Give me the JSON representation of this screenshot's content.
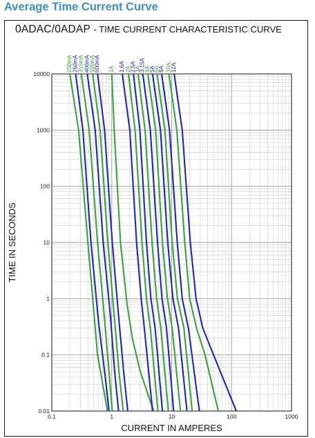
{
  "page": {
    "heading": "Average Time Current Curve"
  },
  "chart_data": {
    "type": "line",
    "title_prefix": "0ADAC/0ADAP",
    "title_suffix": "- TIME CURRENT CHARACTERISTIC CURVE",
    "xlabel": "CURRENT IN AMPERES",
    "ylabel": "TIME IN SECONDS",
    "xscale": "log",
    "yscale": "log",
    "xlim": [
      0.1,
      1000
    ],
    "ylim": [
      0.01,
      10000
    ],
    "xticks": [
      "0.1",
      "1",
      "10",
      "100",
      "1000"
    ],
    "yticks": [
      "0.01",
      "0.1",
      "1",
      "10",
      "100",
      "1000",
      "10000"
    ],
    "grid": true,
    "colors": {
      "green": "#3aa23a",
      "blue": "#1f25b8"
    },
    "series": [
      {
        "name": "200mA",
        "color": "green",
        "x": [
          0.2,
          0.28,
          0.4,
          0.58,
          0.85
        ],
        "y": [
          10000,
          1000,
          10,
          0.1,
          0.01
        ]
      },
      {
        "name": "250mA",
        "color": "blue",
        "x": [
          0.25,
          0.33,
          0.45,
          0.6,
          0.78,
          0.9
        ],
        "y": [
          10000,
          1000,
          10,
          0.4,
          0.04,
          0.01
        ]
      },
      {
        "name": "315mA",
        "color": "green",
        "x": [
          0.31,
          0.42,
          0.58,
          0.75,
          0.9,
          1.02
        ],
        "y": [
          10000,
          1000,
          10,
          0.5,
          0.05,
          0.01
        ]
      },
      {
        "name": "400mA",
        "color": "blue",
        "x": [
          0.39,
          0.53,
          0.72,
          0.95,
          1.12,
          1.3
        ],
        "y": [
          10000,
          1000,
          10,
          0.5,
          0.05,
          0.01
        ]
      },
      {
        "name": "500mA",
        "color": "green",
        "x": [
          0.48,
          0.64,
          0.86,
          1.1,
          1.32,
          1.55
        ],
        "y": [
          10000,
          1000,
          10,
          0.5,
          0.05,
          0.01
        ]
      },
      {
        "name": "600mA",
        "color": "blue",
        "x": [
          0.58,
          0.76,
          1.02,
          1.3,
          1.58,
          1.85
        ],
        "y": [
          10000,
          1000,
          10,
          0.5,
          0.05,
          0.01
        ]
      },
      {
        "name": "1A",
        "color": "green",
        "x": [
          1.0,
          1.1,
          1.4,
          1.8,
          2.2,
          3.0,
          5.0
        ],
        "y": [
          10000,
          1000,
          10,
          0.8,
          0.2,
          0.05,
          0.01
        ]
      },
      {
        "name": "1.6A",
        "color": "blue",
        "x": [
          1.5,
          2.0,
          2.6,
          3.1,
          3.5,
          4.8
        ],
        "y": [
          10000,
          1000,
          10,
          1,
          0.3,
          0.01
        ]
      },
      {
        "name": "2A",
        "color": "green",
        "x": [
          1.9,
          2.45,
          3.2,
          3.8,
          4.4,
          5.9
        ],
        "y": [
          10000,
          1000,
          10,
          1,
          0.3,
          0.01
        ]
      },
      {
        "name": "2.5A",
        "color": "blue",
        "x": [
          2.3,
          2.95,
          3.8,
          4.5,
          5.3,
          7.0
        ],
        "y": [
          10000,
          1000,
          10,
          1,
          0.3,
          0.01
        ]
      },
      {
        "name": "3A",
        "color": "green",
        "x": [
          2.75,
          3.6,
          4.7,
          5.6,
          6.6,
          8.8
        ],
        "y": [
          10000,
          1000,
          10,
          1,
          0.3,
          0.01
        ]
      },
      {
        "name": "3.15A",
        "color": "blue",
        "x": [
          3.3,
          4.4,
          5.8,
          6.9,
          8.2,
          10.8
        ],
        "y": [
          10000,
          1000,
          10,
          1,
          0.3,
          0.01
        ]
      },
      {
        "name": "4A",
        "color": "green",
        "x": [
          4.0,
          5.4,
          7.0,
          8.5,
          10.2,
          14.0
        ],
        "y": [
          10000,
          1000,
          10,
          1,
          0.3,
          0.01
        ]
      },
      {
        "name": "5A",
        "color": "blue",
        "x": [
          4.8,
          6.5,
          8.6,
          10.5,
          13.0,
          18.0
        ],
        "y": [
          10000,
          1000,
          10,
          1,
          0.3,
          0.01
        ]
      },
      {
        "name": "6A",
        "color": "green",
        "x": [
          5.7,
          7.7,
          10.2,
          12.5,
          16.0,
          22.0
        ],
        "y": [
          10000,
          1000,
          10,
          1,
          0.3,
          0.01
        ]
      },
      {
        "name": "8A",
        "color": "blue",
        "x": [
          6.8,
          9.2,
          12.4,
          15.0,
          19.0,
          29.0
        ],
        "y": [
          10000,
          1000,
          10,
          1,
          0.3,
          0.01
        ]
      },
      {
        "name": "10A",
        "color": "green",
        "x": [
          9.0,
          12.2,
          16.5,
          20.0,
          26.0,
          36.0,
          60.0
        ],
        "y": [
          10000,
          1000,
          10,
          1,
          0.3,
          0.1,
          0.01
        ]
      },
      {
        "name": "12A",
        "color": "blue",
        "x": [
          11.0,
          15.0,
          20.5,
          25.5,
          33.0,
          50.0,
          120.0
        ],
        "y": [
          10000,
          1000,
          10,
          1,
          0.3,
          0.1,
          0.01
        ]
      }
    ]
  }
}
